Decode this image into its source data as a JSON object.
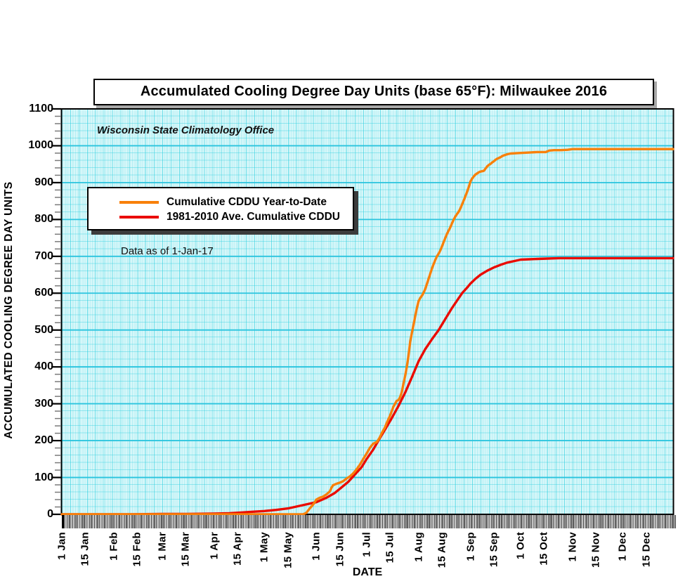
{
  "title": "Accumulated Cooling Degree Day Units (base 65°F): Milwaukee 2016",
  "annotations": {
    "office": "Wisconsin State Climatology Office",
    "data_as_of": "Data as of 1-Jan-17"
  },
  "legend": {
    "items": [
      {
        "label": "Cumulative CDDU Year-to-Date",
        "color": "#F8800A"
      },
      {
        "label": "1981-2010 Ave. Cumulative CDDU",
        "color": "#EA0B00"
      }
    ]
  },
  "axes": {
    "y_title": "ACCUMULATED COOLING DEGREE DAY UNITS",
    "x_title": "DATE"
  },
  "chart_data": {
    "type": "line",
    "title": "Accumulated Cooling Degree Day Units (base 65°F): Milwaukee 2016",
    "xlabel": "DATE",
    "ylabel": "ACCUMULATED COOLING DEGREE DAY UNITS",
    "ylim": [
      0,
      1100
    ],
    "y_major_step": 100,
    "y_minor_step": 20,
    "x_max_day": 365,
    "grid": "on",
    "legend_position": "upper-left",
    "y_ticks": [
      0,
      100,
      200,
      300,
      400,
      500,
      600,
      700,
      800,
      900,
      1000,
      1100
    ],
    "x_ticks": {
      "days": [
        0,
        14,
        31,
        45,
        60,
        74,
        91,
        105,
        121,
        135,
        152,
        166,
        182,
        196,
        213,
        227,
        244,
        258,
        274,
        288,
        305,
        319,
        335,
        349
      ],
      "labels": [
        "1 Jan",
        "15 Jan",
        "1 Feb",
        "15 Feb",
        "1 Mar",
        "15 Mar",
        "1 Apr",
        "15 Apr",
        "1 May",
        "15 May",
        "1 Jun",
        "15 Jun",
        "1 Jul",
        "15 Jul",
        "1 Aug",
        "15 Aug",
        "1 Sep",
        "15 Sep",
        "1 Oct",
        "15 Oct",
        "1 Nov",
        "15 Nov",
        "1 Dec",
        "15 Dec"
      ]
    },
    "series": [
      {
        "name": "Cumulative CDDU Year-to-Date",
        "color": "#F8800A",
        "points": [
          [
            0,
            0
          ],
          [
            20,
            0
          ],
          [
            40,
            0
          ],
          [
            60,
            0
          ],
          [
            80,
            0
          ],
          [
            100,
            0
          ],
          [
            120,
            0
          ],
          [
            135,
            0
          ],
          [
            144,
            0
          ],
          [
            146,
            4
          ],
          [
            148,
            16
          ],
          [
            150,
            26
          ],
          [
            152,
            40
          ],
          [
            154,
            45
          ],
          [
            156,
            48
          ],
          [
            158,
            54
          ],
          [
            160,
            62
          ],
          [
            161,
            72
          ],
          [
            162,
            79
          ],
          [
            164,
            83
          ],
          [
            166,
            86
          ],
          [
            168,
            90
          ],
          [
            170,
            97
          ],
          [
            172,
            103
          ],
          [
            174,
            111
          ],
          [
            176,
            122
          ],
          [
            178,
            135
          ],
          [
            180,
            150
          ],
          [
            182,
            165
          ],
          [
            184,
            181
          ],
          [
            186,
            192
          ],
          [
            188,
            196
          ],
          [
            189,
            202
          ],
          [
            190,
            210
          ],
          [
            191,
            220
          ],
          [
            192,
            228
          ],
          [
            193,
            236
          ],
          [
            194,
            248
          ],
          [
            195,
            258
          ],
          [
            196,
            268
          ],
          [
            197,
            280
          ],
          [
            198,
            292
          ],
          [
            199,
            300
          ],
          [
            200,
            308
          ],
          [
            201,
            310
          ],
          [
            202,
            318
          ],
          [
            203,
            332
          ],
          [
            204,
            354
          ],
          [
            205,
            375
          ],
          [
            206,
            400
          ],
          [
            207,
            430
          ],
          [
            208,
            468
          ],
          [
            209,
            492
          ],
          [
            210,
            513
          ],
          [
            211,
            537
          ],
          [
            212,
            559
          ],
          [
            213,
            578
          ],
          [
            214,
            587
          ],
          [
            215,
            593
          ],
          [
            216,
            601
          ],
          [
            217,
            611
          ],
          [
            218,
            625
          ],
          [
            219,
            639
          ],
          [
            220,
            653
          ],
          [
            221,
            667
          ],
          [
            222,
            679
          ],
          [
            223,
            690
          ],
          [
            224,
            700
          ],
          [
            225,
            707
          ],
          [
            226,
            716
          ],
          [
            227,
            727
          ],
          [
            228,
            739
          ],
          [
            229,
            750
          ],
          [
            230,
            761
          ],
          [
            231,
            770
          ],
          [
            232,
            779
          ],
          [
            233,
            790
          ],
          [
            234,
            800
          ],
          [
            235,
            808
          ],
          [
            236,
            815
          ],
          [
            237,
            821
          ],
          [
            238,
            830
          ],
          [
            239,
            841
          ],
          [
            240,
            852
          ],
          [
            241,
            863
          ],
          [
            242,
            875
          ],
          [
            243,
            888
          ],
          [
            244,
            903
          ],
          [
            245,
            911
          ],
          [
            246,
            917
          ],
          [
            247,
            922
          ],
          [
            248,
            925
          ],
          [
            249,
            928
          ],
          [
            250,
            930
          ],
          [
            252,
            932
          ],
          [
            253,
            938
          ],
          [
            254,
            944
          ],
          [
            255,
            948
          ],
          [
            256,
            951
          ],
          [
            257,
            955
          ],
          [
            258,
            958
          ],
          [
            259,
            962
          ],
          [
            260,
            965
          ],
          [
            261,
            967
          ],
          [
            262,
            969
          ],
          [
            263,
            972
          ],
          [
            264,
            974
          ],
          [
            266,
            977
          ],
          [
            268,
            979
          ],
          [
            272,
            980
          ],
          [
            276,
            981
          ],
          [
            280,
            982
          ],
          [
            284,
            983
          ],
          [
            289,
            983
          ],
          [
            291,
            987
          ],
          [
            294,
            988
          ],
          [
            298,
            988
          ],
          [
            302,
            989
          ],
          [
            305,
            991
          ],
          [
            310,
            991
          ],
          [
            320,
            991
          ],
          [
            335,
            991
          ],
          [
            350,
            991
          ],
          [
            365,
            991
          ]
        ]
      },
      {
        "name": "1981-2010 Ave. Cumulative CDDU",
        "color": "#EA0B00",
        "points": [
          [
            0,
            0
          ],
          [
            20,
            0
          ],
          [
            40,
            0
          ],
          [
            60,
            1
          ],
          [
            75,
            1
          ],
          [
            91,
            2
          ],
          [
            100,
            3
          ],
          [
            107,
            5
          ],
          [
            114,
            7
          ],
          [
            121,
            9
          ],
          [
            128,
            12
          ],
          [
            135,
            16
          ],
          [
            140,
            21
          ],
          [
            145,
            26
          ],
          [
            152,
            33
          ],
          [
            158,
            45
          ],
          [
            163,
            58
          ],
          [
            167,
            73
          ],
          [
            171,
            88
          ],
          [
            175,
            108
          ],
          [
            179,
            128
          ],
          [
            182,
            150
          ],
          [
            186,
            176
          ],
          [
            189,
            200
          ],
          [
            193,
            230
          ],
          [
            197,
            261
          ],
          [
            201,
            294
          ],
          [
            205,
            330
          ],
          [
            209,
            372
          ],
          [
            213,
            415
          ],
          [
            217,
            448
          ],
          [
            221,
            475
          ],
          [
            225,
            500
          ],
          [
            229,
            530
          ],
          [
            233,
            560
          ],
          [
            236,
            580
          ],
          [
            239,
            600
          ],
          [
            242,
            615
          ],
          [
            244,
            626
          ],
          [
            247,
            639
          ],
          [
            250,
            650
          ],
          [
            254,
            661
          ],
          [
            258,
            670
          ],
          [
            262,
            677
          ],
          [
            266,
            683
          ],
          [
            270,
            687
          ],
          [
            274,
            691
          ],
          [
            279,
            692
          ],
          [
            284,
            693
          ],
          [
            290,
            694
          ],
          [
            297,
            695
          ],
          [
            305,
            695
          ],
          [
            320,
            695
          ],
          [
            340,
            695
          ],
          [
            365,
            695
          ]
        ]
      }
    ],
    "colors": {
      "plot_bg": "#E4FAFB",
      "grid_major": "#2BC4DE",
      "grid_minor": "rgba(40,205,222,0.40)",
      "frame": "#000000",
      "tick_major": "#000000",
      "tick_minor": "#7a7a7a"
    }
  }
}
